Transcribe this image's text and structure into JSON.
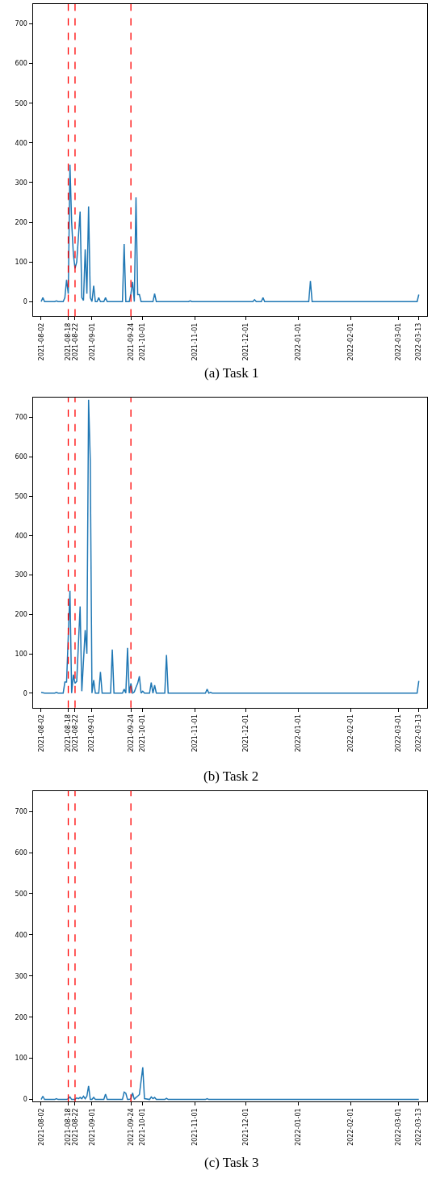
{
  "chart_data": [
    {
      "type": "line",
      "title": "(a) Task 1",
      "grid": false,
      "marker": "none",
      "line_style": "solid",
      "xlim": [
        "2021-07-28",
        "2022-03-18"
      ],
      "ylim": [
        -37,
        750
      ],
      "xticks": [
        "2021-08-02",
        "2021-08-18",
        "2021-08-22",
        "2021-09-01",
        "2021-09-24",
        "2021-10-01",
        "2021-11-01",
        "2021-12-01",
        "2022-01-01",
        "2022-02-01",
        "2022-03-01",
        "2022-03-13"
      ],
      "yticks": [
        0,
        100,
        200,
        300,
        400,
        500,
        600,
        700
      ],
      "ref_lines": [
        {
          "axis": "x",
          "value": "2021-08-18",
          "color": "#ff0000",
          "line_style": "dashed"
        },
        {
          "axis": "x",
          "value": "2021-08-22",
          "color": "#ff0000",
          "line_style": "dashed"
        },
        {
          "axis": "x",
          "value": "2021-09-24",
          "color": "#ff0000",
          "line_style": "dashed"
        }
      ],
      "series": [
        {
          "color": "#1f77b4",
          "x": [
            "2021-08-02",
            "2021-08-03",
            "2021-08-04",
            "2021-08-10",
            "2021-08-11",
            "2021-08-12",
            "2021-08-15",
            "2021-08-16",
            "2021-08-17",
            "2021-08-18",
            "2021-08-19",
            "2021-08-20",
            "2021-08-21",
            "2021-08-22",
            "2021-08-23",
            "2021-08-25",
            "2021-08-26",
            "2021-08-27",
            "2021-08-28",
            "2021-08-29",
            "2021-08-30",
            "2021-08-31",
            "2021-09-01",
            "2021-09-02",
            "2021-09-03",
            "2021-09-04",
            "2021-09-05",
            "2021-09-06",
            "2021-09-08",
            "2021-09-09",
            "2021-09-10",
            "2021-09-19",
            "2021-09-20",
            "2021-09-21",
            "2021-09-23",
            "2021-09-24",
            "2021-09-25",
            "2021-09-26",
            "2021-09-27",
            "2021-09-28",
            "2021-09-29",
            "2021-09-30",
            "2021-10-07",
            "2021-10-08",
            "2021-10-09",
            "2021-10-28",
            "2021-10-29",
            "2021-10-30",
            "2021-12-05",
            "2021-12-06",
            "2021-12-07",
            "2021-12-10",
            "2021-12-11",
            "2021-12-12",
            "2022-01-07",
            "2022-01-08",
            "2022-01-09",
            "2022-03-12",
            "2022-03-13"
          ],
          "values": [
            0,
            10,
            0,
            0,
            2,
            0,
            0,
            10,
            55,
            20,
            345,
            200,
            120,
            84,
            100,
            227,
            10,
            3,
            132,
            20,
            240,
            10,
            0,
            40,
            0,
            0,
            10,
            0,
            0,
            10,
            0,
            0,
            145,
            0,
            0,
            20,
            50,
            0,
            263,
            18,
            18,
            0,
            0,
            20,
            0,
            0,
            2,
            0,
            0,
            5,
            0,
            0,
            10,
            0,
            0,
            52,
            0,
            0,
            18
          ]
        }
      ]
    },
    {
      "type": "line",
      "title": "(b) Task 2",
      "grid": false,
      "marker": "none",
      "line_style": "solid",
      "xlim": [
        "2021-07-28",
        "2022-03-18"
      ],
      "ylim": [
        -37,
        750
      ],
      "xticks": [
        "2021-08-02",
        "2021-08-18",
        "2021-08-22",
        "2021-09-01",
        "2021-09-24",
        "2021-10-01",
        "2021-11-01",
        "2021-12-01",
        "2022-01-01",
        "2022-02-01",
        "2022-03-01",
        "2022-03-13"
      ],
      "yticks": [
        0,
        100,
        200,
        300,
        400,
        500,
        600,
        700
      ],
      "ref_lines": [
        {
          "axis": "x",
          "value": "2021-08-18",
          "color": "#ff0000",
          "line_style": "dashed"
        },
        {
          "axis": "x",
          "value": "2021-08-22",
          "color": "#ff0000",
          "line_style": "dashed"
        },
        {
          "axis": "x",
          "value": "2021-09-24",
          "color": "#ff0000",
          "line_style": "dashed"
        }
      ],
      "series": [
        {
          "color": "#1f77b4",
          "x": [
            "2021-08-02",
            "2021-08-04",
            "2021-08-10",
            "2021-08-11",
            "2021-08-12",
            "2021-08-15",
            "2021-08-16",
            "2021-08-17",
            "2021-08-19",
            "2021-08-20",
            "2021-08-21",
            "2021-08-22",
            "2021-08-23",
            "2021-08-25",
            "2021-08-26",
            "2021-08-28",
            "2021-08-29",
            "2021-08-30",
            "2021-08-31",
            "2021-09-01",
            "2021-09-02",
            "2021-09-03",
            "2021-09-05",
            "2021-09-06",
            "2021-09-07",
            "2021-09-12",
            "2021-09-13",
            "2021-09-14",
            "2021-09-19",
            "2021-09-20",
            "2021-09-21",
            "2021-09-22",
            "2021-09-23",
            "2021-09-24",
            "2021-09-25",
            "2021-09-26",
            "2021-09-27",
            "2021-09-28",
            "2021-09-29",
            "2021-09-30",
            "2021-10-01",
            "2021-10-02",
            "2021-10-05",
            "2021-10-06",
            "2021-10-07",
            "2021-10-08",
            "2021-10-09",
            "2021-10-14",
            "2021-10-15",
            "2021-10-16",
            "2021-11-07",
            "2021-11-08",
            "2021-11-09",
            "2021-11-10",
            "2021-11-11",
            "2022-03-12",
            "2022-03-13"
          ],
          "values": [
            2,
            0,
            0,
            2,
            0,
            0,
            28,
            28,
            260,
            0,
            47,
            25,
            30,
            220,
            5,
            160,
            100,
            745,
            590,
            0,
            33,
            0,
            0,
            54,
            0,
            0,
            111,
            0,
            0,
            10,
            0,
            115,
            0,
            25,
            0,
            3,
            15,
            25,
            43,
            0,
            5,
            0,
            0,
            27,
            0,
            20,
            0,
            0,
            97,
            0,
            0,
            10,
            0,
            2,
            0,
            0,
            31
          ]
        }
      ]
    },
    {
      "type": "line",
      "title": "(c) Task 3",
      "grid": false,
      "marker": "none",
      "line_style": "solid",
      "xlim": [
        "2021-07-28",
        "2022-03-18"
      ],
      "ylim": [
        -5,
        750
      ],
      "xticks": [
        "2021-08-02",
        "2021-08-18",
        "2021-08-22",
        "2021-09-01",
        "2021-09-24",
        "2021-10-01",
        "2021-11-01",
        "2021-12-01",
        "2022-01-01",
        "2022-02-01",
        "2022-03-01",
        "2022-03-13"
      ],
      "yticks": [
        0,
        100,
        200,
        300,
        400,
        500,
        600,
        700
      ],
      "ref_lines": [
        {
          "axis": "x",
          "value": "2021-08-18",
          "color": "#ff0000",
          "line_style": "dashed"
        },
        {
          "axis": "x",
          "value": "2021-08-22",
          "color": "#ff0000",
          "line_style": "dashed"
        },
        {
          "axis": "x",
          "value": "2021-09-24",
          "color": "#ff0000",
          "line_style": "dashed"
        }
      ],
      "series": [
        {
          "color": "#1f77b4",
          "x": [
            "2021-08-02",
            "2021-08-03",
            "2021-08-04",
            "2021-08-10",
            "2021-08-11",
            "2021-08-12",
            "2021-08-17",
            "2021-08-18",
            "2021-08-19",
            "2021-08-20",
            "2021-08-22",
            "2021-08-23",
            "2021-08-24",
            "2021-08-25",
            "2021-08-26",
            "2021-08-27",
            "2021-08-28",
            "2021-08-29",
            "2021-08-30",
            "2021-08-31",
            "2021-09-01",
            "2021-09-02",
            "2021-09-03",
            "2021-09-08",
            "2021-09-09",
            "2021-09-10",
            "2021-09-19",
            "2021-09-20",
            "2021-09-21",
            "2021-09-22",
            "2021-09-23",
            "2021-09-24",
            "2021-09-25",
            "2021-09-26",
            "2021-09-27",
            "2021-09-28",
            "2021-09-29",
            "2021-10-01",
            "2021-10-02",
            "2021-10-05",
            "2021-10-06",
            "2021-10-07",
            "2021-10-08",
            "2021-10-09",
            "2021-10-14",
            "2021-10-15",
            "2021-10-16",
            "2021-11-07",
            "2021-11-08",
            "2021-11-09",
            "2022-03-13"
          ],
          "values": [
            0,
            8,
            0,
            0,
            2,
            0,
            0,
            2,
            6,
            0,
            0,
            4,
            2,
            5,
            2,
            8,
            2,
            8,
            33,
            0,
            0,
            5,
            0,
            0,
            13,
            0,
            0,
            18,
            15,
            0,
            0,
            2,
            16,
            0,
            5,
            8,
            12,
            78,
            2,
            0,
            6,
            2,
            5,
            0,
            0,
            3,
            0,
            0,
            2,
            0,
            0
          ]
        }
      ]
    }
  ]
}
